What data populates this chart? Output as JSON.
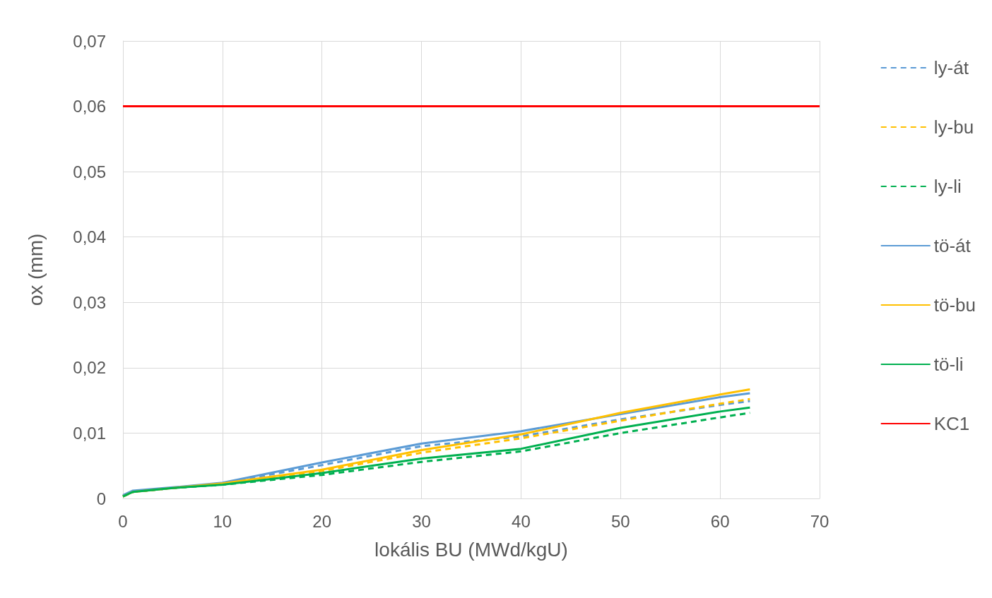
{
  "chart_data": {
    "type": "line",
    "xlabel": "lokális BU (MWd/kgU)",
    "ylabel": "ox (mm)",
    "xlim": [
      0,
      70
    ],
    "xticks": [
      0,
      10,
      20,
      30,
      40,
      50,
      60,
      70
    ],
    "ylim": [
      0,
      0.07
    ],
    "yticks": [
      {
        "value": 0,
        "label": "0"
      },
      {
        "value": 0.01,
        "label": "0,01"
      },
      {
        "value": 0.02,
        "label": "0,02"
      },
      {
        "value": 0.03,
        "label": "0,03"
      },
      {
        "value": 0.04,
        "label": "0,04"
      },
      {
        "value": 0.05,
        "label": "0,05"
      },
      {
        "value": 0.06,
        "label": "0,06"
      },
      {
        "value": 0.07,
        "label": "0,07"
      }
    ],
    "grid": true,
    "legend": "right",
    "marker": "none",
    "x": [
      0,
      1,
      5,
      10,
      20,
      30,
      40,
      50,
      60,
      63
    ],
    "series": [
      {
        "name": "ly-át",
        "color": "#5b9bd5",
        "line_style": "dashed",
        "values": [
          0.0003,
          0.001,
          0.0016,
          0.0023,
          0.0051,
          0.008,
          0.0095,
          0.0121,
          0.0143,
          0.0149
        ]
      },
      {
        "name": "ly-bu",
        "color": "#ffc000",
        "line_style": "dashed",
        "values": [
          0.0003,
          0.001,
          0.0016,
          0.0022,
          0.0042,
          0.007,
          0.0092,
          0.0119,
          0.0145,
          0.0152
        ]
      },
      {
        "name": "ly-li",
        "color": "#00b050",
        "line_style": "dashed",
        "values": [
          0.0003,
          0.001,
          0.0016,
          0.0021,
          0.0036,
          0.0056,
          0.0072,
          0.01,
          0.0124,
          0.0131
        ]
      },
      {
        "name": "tö-át",
        "color": "#5b9bd5",
        "line_style": "solid",
        "values": [
          0.0005,
          0.0012,
          0.0017,
          0.0024,
          0.0055,
          0.0084,
          0.0103,
          0.0129,
          0.0155,
          0.0161
        ]
      },
      {
        "name": "tö-bu",
        "color": "#ffc000",
        "line_style": "solid",
        "values": [
          0.0003,
          0.001,
          0.0016,
          0.0023,
          0.0044,
          0.0074,
          0.0098,
          0.0131,
          0.0159,
          0.0167
        ]
      },
      {
        "name": "tö-li",
        "color": "#00b050",
        "line_style": "solid",
        "values": [
          0.0003,
          0.001,
          0.0016,
          0.0021,
          0.0039,
          0.0061,
          0.0076,
          0.0108,
          0.0133,
          0.0139
        ]
      },
      {
        "name": "KC1",
        "color": "#ff0000",
        "line_style": "solid",
        "x": [
          0,
          70
        ],
        "values": [
          0.06,
          0.06
        ]
      }
    ]
  }
}
